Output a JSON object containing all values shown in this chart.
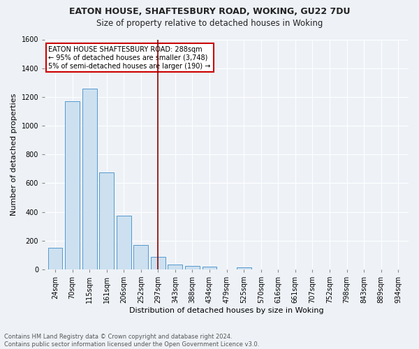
{
  "title": "EATON HOUSE, SHAFTESBURY ROAD, WOKING, GU22 7DU",
  "subtitle": "Size of property relative to detached houses in Woking",
  "xlabel": "Distribution of detached houses by size in Woking",
  "ylabel": "Number of detached properties",
  "categories": [
    "24sqm",
    "70sqm",
    "115sqm",
    "161sqm",
    "206sqm",
    "252sqm",
    "297sqm",
    "343sqm",
    "388sqm",
    "434sqm",
    "479sqm",
    "525sqm",
    "570sqm",
    "616sqm",
    "661sqm",
    "707sqm",
    "752sqm",
    "798sqm",
    "843sqm",
    "889sqm",
    "934sqm"
  ],
  "values": [
    148,
    1170,
    1260,
    675,
    375,
    170,
    85,
    35,
    25,
    20,
    0,
    12,
    0,
    0,
    0,
    0,
    0,
    0,
    0,
    0,
    0
  ],
  "bar_color": "#cce0f0",
  "bar_edge_color": "#5599cc",
  "vline_x_index": 6,
  "vline_color": "#8b0000",
  "annotation_text": "EATON HOUSE SHAFTESBURY ROAD: 288sqm\n← 95% of detached houses are smaller (3,748)\n5% of semi-detached houses are larger (190) →",
  "annotation_box_color": "#ffffff",
  "annotation_box_edge": "#cc0000",
  "ylim": [
    0,
    1600
  ],
  "yticks": [
    0,
    200,
    400,
    600,
    800,
    1000,
    1200,
    1400,
    1600
  ],
  "footer": "Contains HM Land Registry data © Crown copyright and database right 2024.\nContains public sector information licensed under the Open Government Licence v3.0.",
  "bg_color": "#eef2f7",
  "plot_bg_color": "#eef2f7",
  "title_fontsize": 9,
  "subtitle_fontsize": 8.5,
  "xlabel_fontsize": 8,
  "ylabel_fontsize": 8,
  "tick_fontsize": 7,
  "annotation_fontsize": 7,
  "footer_fontsize": 6
}
